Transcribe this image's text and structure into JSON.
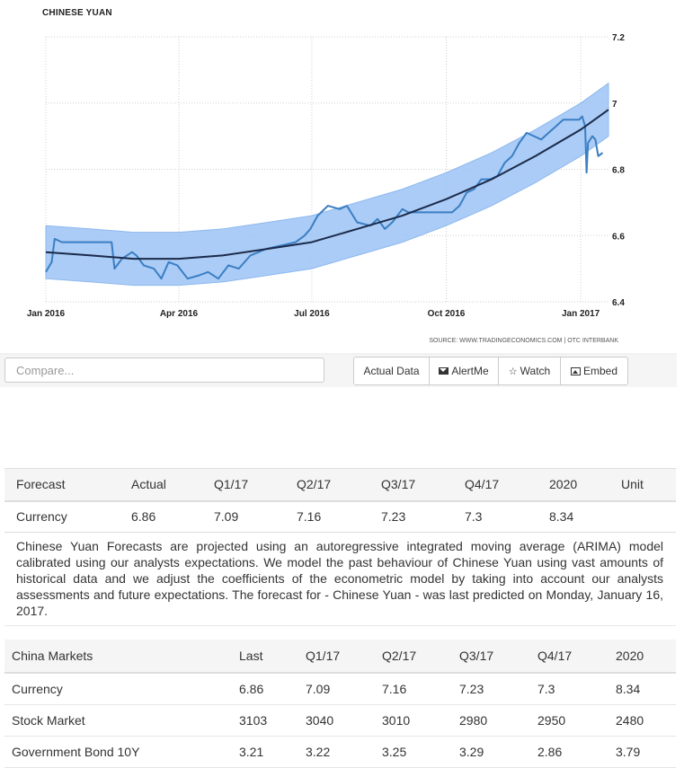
{
  "chart_data": {
    "type": "line",
    "title": "CHINESE YUAN",
    "source": "SOURCE: WWW.TRADINGECONOMICS.COM | OTC INTERBANK",
    "x_tick_labels": [
      "Jan 2016",
      "Apr 2016",
      "Jul 2016",
      "Oct 2016",
      "Jan 2017"
    ],
    "y_tick_labels": [
      "6.4",
      "6.6",
      "6.8",
      "7",
      "7.2"
    ],
    "ylim": [
      6.4,
      7.2
    ],
    "x_range": [
      "2016-01-01",
      "2017-01-20"
    ],
    "grid": true,
    "series": [
      {
        "role": "actual",
        "color": "#3a7ec4",
        "points": [
          [
            "2016-01-01",
            6.49
          ],
          [
            "2016-01-05",
            6.52
          ],
          [
            "2016-01-07",
            6.59
          ],
          [
            "2016-01-12",
            6.58
          ],
          [
            "2016-01-20",
            6.58
          ],
          [
            "2016-01-28",
            6.58
          ],
          [
            "2016-02-05",
            6.58
          ],
          [
            "2016-02-15",
            6.58
          ],
          [
            "2016-02-17",
            6.5
          ],
          [
            "2016-02-22",
            6.53
          ],
          [
            "2016-02-29",
            6.55
          ],
          [
            "2016-03-03",
            6.54
          ],
          [
            "2016-03-08",
            6.51
          ],
          [
            "2016-03-15",
            6.5
          ],
          [
            "2016-03-20",
            6.47
          ],
          [
            "2016-03-25",
            6.52
          ],
          [
            "2016-03-31",
            6.51
          ],
          [
            "2016-04-07",
            6.47
          ],
          [
            "2016-04-15",
            6.48
          ],
          [
            "2016-04-21",
            6.49
          ],
          [
            "2016-04-28",
            6.47
          ],
          [
            "2016-05-05",
            6.51
          ],
          [
            "2016-05-12",
            6.5
          ],
          [
            "2016-05-20",
            6.54
          ],
          [
            "2016-05-31",
            6.56
          ],
          [
            "2016-06-10",
            6.57
          ],
          [
            "2016-06-20",
            6.58
          ],
          [
            "2016-06-26",
            6.6
          ],
          [
            "2016-06-30",
            6.62
          ],
          [
            "2016-07-05",
            6.66
          ],
          [
            "2016-07-12",
            6.69
          ],
          [
            "2016-07-20",
            6.68
          ],
          [
            "2016-07-25",
            6.69
          ],
          [
            "2016-08-01",
            6.64
          ],
          [
            "2016-08-10",
            6.63
          ],
          [
            "2016-08-15",
            6.65
          ],
          [
            "2016-08-20",
            6.62
          ],
          [
            "2016-08-25",
            6.64
          ],
          [
            "2016-09-01",
            6.68
          ],
          [
            "2016-09-05",
            6.67
          ],
          [
            "2016-09-10",
            6.67
          ],
          [
            "2016-09-20",
            6.67
          ],
          [
            "2016-09-30",
            6.67
          ],
          [
            "2016-10-05",
            6.67
          ],
          [
            "2016-10-10",
            6.69
          ],
          [
            "2016-10-15",
            6.73
          ],
          [
            "2016-10-20",
            6.74
          ],
          [
            "2016-10-25",
            6.77
          ],
          [
            "2016-10-31",
            6.77
          ],
          [
            "2016-11-05",
            6.78
          ],
          [
            "2016-11-10",
            6.82
          ],
          [
            "2016-11-15",
            6.84
          ],
          [
            "2016-11-20",
            6.88
          ],
          [
            "2016-11-25",
            6.91
          ],
          [
            "2016-11-30",
            6.9
          ],
          [
            "2016-12-05",
            6.89
          ],
          [
            "2016-12-10",
            6.91
          ],
          [
            "2016-12-15",
            6.93
          ],
          [
            "2016-12-20",
            6.95
          ],
          [
            "2016-12-25",
            6.95
          ],
          [
            "2016-12-31",
            6.95
          ],
          [
            "2017-01-02",
            6.96
          ],
          [
            "2017-01-04",
            6.93
          ],
          [
            "2017-01-05",
            6.79
          ],
          [
            "2017-01-06",
            6.88
          ],
          [
            "2017-01-09",
            6.9
          ],
          [
            "2017-01-11",
            6.89
          ],
          [
            "2017-01-13",
            6.84
          ],
          [
            "2017-01-16",
            6.85
          ]
        ]
      },
      {
        "role": "trend",
        "color": "#1b2a4a",
        "band_half_width": 0.08,
        "points": [
          [
            "2016-01-01",
            6.55
          ],
          [
            "2016-02-01",
            6.54
          ],
          [
            "2016-03-01",
            6.53
          ],
          [
            "2016-04-01",
            6.53
          ],
          [
            "2016-05-01",
            6.54
          ],
          [
            "2016-06-01",
            6.56
          ],
          [
            "2016-07-01",
            6.58
          ],
          [
            "2016-08-01",
            6.62
          ],
          [
            "2016-09-01",
            6.66
          ],
          [
            "2016-10-01",
            6.71
          ],
          [
            "2016-11-01",
            6.77
          ],
          [
            "2016-12-01",
            6.84
          ],
          [
            "2017-01-01",
            6.92
          ],
          [
            "2017-01-20",
            6.98
          ]
        ],
        "band_color": "#9cc3f5"
      }
    ]
  },
  "toolbar": {
    "compare_placeholder": "Compare...",
    "actual_data": "Actual Data",
    "alertme": "AlertMe",
    "watch": "Watch",
    "embed": "Embed"
  },
  "forecast": {
    "headers": [
      "Forecast",
      "Actual",
      "Q1/17",
      "Q2/17",
      "Q3/17",
      "Q4/17",
      "2020",
      "Unit"
    ],
    "row": [
      "Currency",
      "6.86",
      "7.09",
      "7.16",
      "7.23",
      "7.3",
      "8.34",
      ""
    ],
    "description": "Chinese Yuan Forecasts are projected using an autoregressive integrated moving average (ARIMA) model calibrated using our analysts expectations. We model the past behaviour of Chinese Yuan using vast amounts of historical data and we adjust the coefficients of the econometric model by taking into account our analysts assessments and future expectations. The forecast for - Chinese Yuan - was last predicted on Monday, January 16, 2017."
  },
  "markets": {
    "headers": [
      "China Markets",
      "Last",
      "Q1/17",
      "Q2/17",
      "Q3/17",
      "Q4/17",
      "2020"
    ],
    "rows": [
      [
        "Currency",
        "6.86",
        "7.09",
        "7.16",
        "7.23",
        "7.3",
        "8.34"
      ],
      [
        "Stock Market",
        "3103",
        "3040",
        "3010",
        "2980",
        "2950",
        "2480"
      ],
      [
        "Government Bond 10Y",
        "3.21",
        "3.22",
        "3.25",
        "3.29",
        "2.86",
        "3.79"
      ]
    ]
  }
}
